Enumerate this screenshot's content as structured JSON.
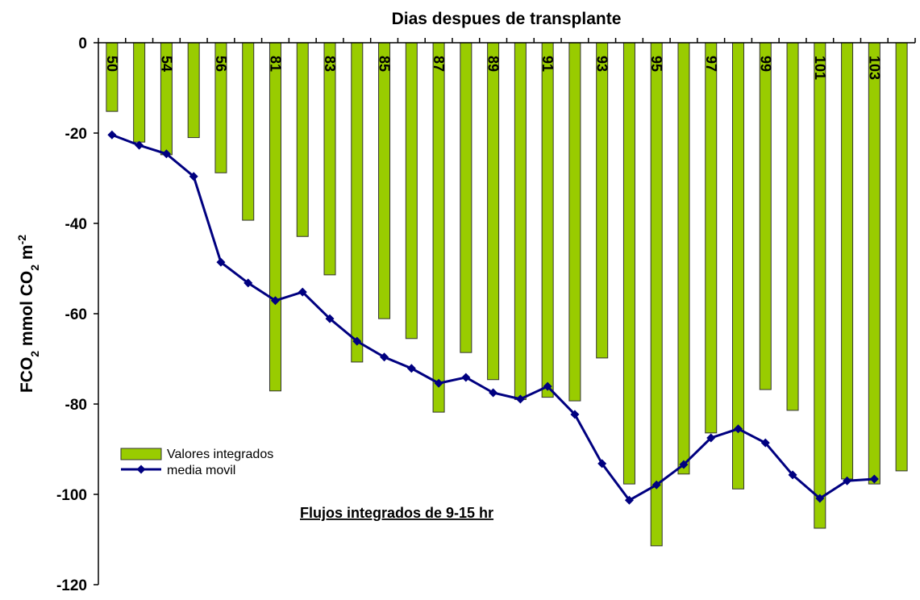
{
  "chart_data": {
    "type": "bar_line",
    "title": "Dias despues de transplante",
    "ylabel": [
      {
        "text": "FCO"
      },
      {
        "text": "2",
        "script": "sub"
      },
      {
        "text": " mmol CO"
      },
      {
        "text": "2",
        "script": "sub"
      },
      {
        "text": " m"
      },
      {
        "text": "-2",
        "script": "sup"
      }
    ],
    "annotation": "Flujos integrados de 9-15 hr",
    "categories": [
      "50",
      null,
      "54",
      null,
      "56",
      null,
      "81",
      null,
      "83",
      null,
      "85",
      null,
      "87",
      null,
      "89",
      null,
      "91",
      null,
      "93",
      null,
      "95",
      null,
      "97",
      null,
      "99",
      null,
      "101",
      null,
      "103",
      null
    ],
    "series": [
      {
        "name": "Valores integrados",
        "kind": "bar",
        "color": "#99cc00",
        "values": [
          -15.2,
          -22,
          -24.8,
          -21,
          -28.8,
          -39.3,
          -77.1,
          -42.9,
          -51.4,
          -70.7,
          -61.1,
          -65.5,
          -81.8,
          -68.6,
          -74.6,
          -79,
          -78.5,
          -79.3,
          -69.8,
          -97.7,
          -111.4,
          -95.5,
          -86.4,
          -98.8,
          -76.8,
          -81.4,
          -107.5,
          -96.6,
          -97.7,
          -94.8
        ]
      },
      {
        "name": "media movil",
        "kind": "line",
        "color": "#000080",
        "values": [
          -20.4,
          -22.7,
          -24.6,
          -29.6,
          -48.6,
          -53.2,
          -57.1,
          -55.2,
          -61.1,
          -66.1,
          -69.6,
          -72.1,
          -75.4,
          -74.1,
          -77.5,
          -78.9,
          -76.1,
          -82.3,
          -93.2,
          -101.3,
          -97.9,
          -93.4,
          -87.5,
          -85.5,
          -88.6,
          -95.7,
          -100.9,
          -97.0,
          -96.6,
          null
        ]
      }
    ],
    "ylim": [
      0,
      -120
    ],
    "yticks": [
      0,
      -20,
      -40,
      -60,
      -80,
      -100,
      -120
    ]
  }
}
